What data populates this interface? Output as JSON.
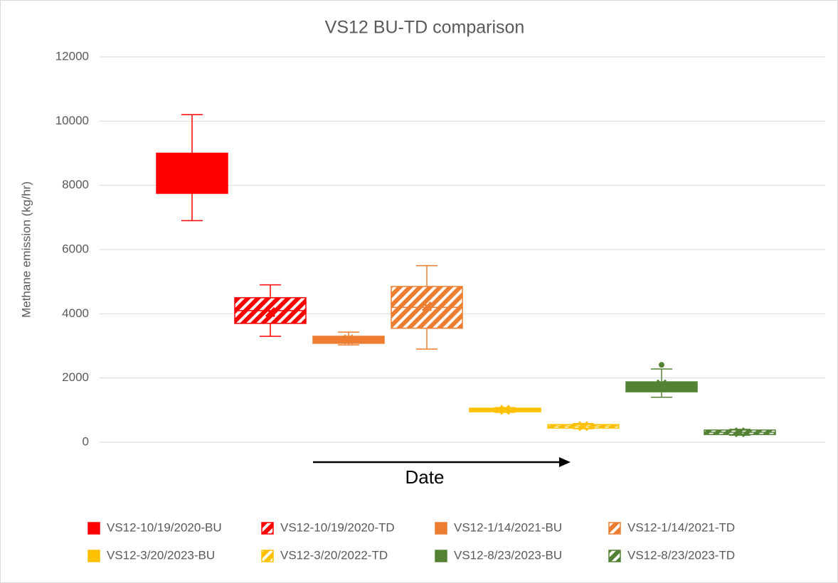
{
  "chart_data": {
    "type": "box",
    "title": "VS12  BU-TD comparison",
    "y_label": "Methane emission (kg/hr)",
    "annotation": "Date",
    "ylim": [
      0,
      12000
    ],
    "yticks": [
      0,
      2000,
      4000,
      6000,
      8000,
      10000,
      12000
    ],
    "grid": true,
    "legend": "bottom",
    "series": [
      {
        "name": "VS12-10/19/2020-BU",
        "color": "#ff0000",
        "hatch": false,
        "min": 6900,
        "q1": 7750,
        "median": 8300,
        "q3": 9000,
        "max": 10200,
        "mean": 8400,
        "outliers": []
      },
      {
        "name": "VS12-10/19/2020-TD",
        "color": "#ff0000",
        "hatch": true,
        "min": 3300,
        "q1": 3700,
        "median": 4100,
        "q3": 4500,
        "max": 4900,
        "mean": 4050,
        "outliers": []
      },
      {
        "name": "VS12-1/14/2021-BU",
        "color": "#ed7d31",
        "hatch": false,
        "min": 3030,
        "q1": 3080,
        "median": 3190,
        "q3": 3300,
        "max": 3430,
        "mean": 3200,
        "outliers": []
      },
      {
        "name": "VS12-1/14/2021-TD",
        "color": "#ed7d31",
        "hatch": true,
        "min": 2900,
        "q1": 3550,
        "median": 4200,
        "q3": 4850,
        "max": 5500,
        "mean": 4230,
        "outliers": []
      },
      {
        "name": "VS12-3/20/2023-BU",
        "color": "#ffc000",
        "hatch": false,
        "min": 930,
        "q1": 950,
        "median": 1000,
        "q3": 1060,
        "max": 1080,
        "mean": 1010,
        "outliers": []
      },
      {
        "name": "VS12-3/20/2022-TD",
        "color": "#ffc000",
        "hatch": true,
        "min": 420,
        "q1": 440,
        "median": 500,
        "q3": 550,
        "max": 580,
        "mean": 500,
        "outliers": []
      },
      {
        "name": "VS12-8/23/2023-BU",
        "color": "#548235",
        "hatch": false,
        "min": 1400,
        "q1": 1570,
        "median": 1700,
        "q3": 1880,
        "max": 2280,
        "mean": 1800,
        "outliers": [
          2410
        ]
      },
      {
        "name": "VS12-8/23/2023-TD",
        "color": "#548235",
        "hatch": true,
        "min": 220,
        "q1": 240,
        "median": 310,
        "q3": 380,
        "max": 400,
        "mean": 310,
        "outliers": []
      }
    ]
  }
}
